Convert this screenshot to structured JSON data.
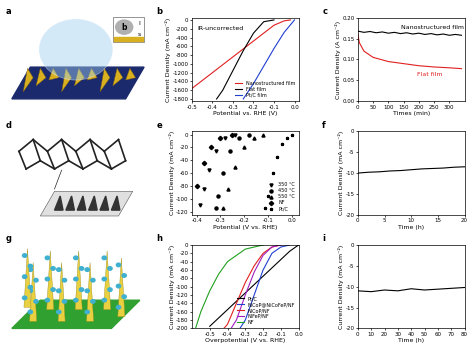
{
  "chart_data": [
    {
      "type": "line",
      "panel_label": "b",
      "x_label": "Potential vs. RHE (V)",
      "y_label": "Current Density (mA cm⁻²)",
      "xlim": [
        -0.5,
        0.02
      ],
      "xticks": [
        -0.5,
        -0.4,
        -0.3,
        -0.2,
        -0.1,
        0.0
      ],
      "ylim": [
        -1850,
        50
      ],
      "yticks": [
        0,
        -200,
        -400,
        -600,
        -800,
        -1000,
        -1200,
        -1400,
        -1600,
        -1800
      ],
      "legend": "lower right",
      "annotations": [
        {
          "text": "IR-uncorrected",
          "color": "#000000"
        }
      ],
      "series": [
        {
          "name": "Nanostructured film",
          "color": "#e02020",
          "line_style": "solid",
          "x": [
            -0.02,
            -0.05,
            -0.1,
            -0.15,
            -0.2,
            -0.25,
            -0.3,
            -0.35,
            -0.4,
            -0.45,
            -0.5
          ],
          "values": [
            0,
            -20,
            -120,
            -300,
            -480,
            -660,
            -840,
            -1020,
            -1200,
            -1380,
            -1560
          ]
        },
        {
          "name": "Flat film",
          "color": "#000000",
          "line_style": "solid",
          "x": [
            -0.1,
            -0.15,
            -0.2,
            -0.25,
            -0.3,
            -0.35,
            -0.38
          ],
          "values": [
            0,
            -40,
            -300,
            -700,
            -1150,
            -1600,
            -1800
          ]
        },
        {
          "name": "Pt/C film",
          "color": "#2040d0",
          "line_style": "solid",
          "x": [
            0.0,
            -0.05,
            -0.1,
            -0.15,
            -0.2,
            -0.25
          ],
          "values": [
            0,
            -280,
            -650,
            -1050,
            -1450,
            -1800
          ]
        }
      ]
    },
    {
      "type": "line",
      "panel_label": "c",
      "x_label": "Times (min)",
      "y_label": "Current Density (A cm⁻²)",
      "xlim": [
        0,
        350
      ],
      "xticks": [
        0,
        50,
        100,
        150,
        200,
        250,
        300
      ],
      "ylim": [
        0.0,
        0.2
      ],
      "yticks": [
        {
          "value": 0.0,
          "label": "0.00"
        },
        0.05,
        {
          "value": 0.1,
          "label": "0.10"
        },
        0.15,
        {
          "value": 0.2,
          "label": "0.20"
        }
      ],
      "annotations": [
        {
          "text": "Nanostructured film",
          "color": "#000000"
        },
        {
          "text": "Flat film",
          "color": "#e02020"
        }
      ],
      "series": [
        {
          "color": "#000000",
          "line_style": "solid",
          "x": [
            0,
            20,
            40,
            60,
            80,
            100,
            120,
            140,
            160,
            180,
            200,
            220,
            240,
            260,
            280,
            300,
            320,
            340
          ],
          "values": [
            0.168,
            0.165,
            0.167,
            0.164,
            0.166,
            0.163,
            0.165,
            0.162,
            0.164,
            0.161,
            0.163,
            0.16,
            0.162,
            0.159,
            0.161,
            0.158,
            0.16,
            0.158
          ]
        },
        {
          "color": "#e02020",
          "line_style": "solid",
          "x": [
            0,
            5,
            20,
            50,
            100,
            150,
            200,
            250,
            300,
            340
          ],
          "values": [
            0.16,
            0.14,
            0.12,
            0.105,
            0.095,
            0.09,
            0.085,
            0.082,
            0.08,
            0.078
          ]
        }
      ]
    },
    {
      "type": "line",
      "panel_label": "e",
      "x_label": "Potential (V vs. RHE)",
      "y_label": "Current Density (mA cm⁻²)",
      "xlim": [
        -0.42,
        0.03
      ],
      "xticks": [
        -0.4,
        -0.3,
        -0.2,
        -0.1,
        0.0
      ],
      "ylim": [
        -125,
        5
      ],
      "yticks": [
        0,
        -20,
        -40,
        -60,
        -80,
        -100,
        -120
      ],
      "legend": "lower right",
      "series": [
        {
          "name": "350 °C",
          "color": "#000000",
          "marker": "triangle_down",
          "line_style": "none",
          "x": [
            -0.24,
            -0.28,
            -0.32,
            -0.35,
            -0.37,
            -0.385
          ],
          "values": [
            0,
            -5,
            -25,
            -55,
            -85,
            -110
          ]
        },
        {
          "name": "450 °C",
          "color": "#000000",
          "marker": "circle",
          "line_style": "none",
          "x": [
            -0.18,
            -0.22,
            -0.26,
            -0.29,
            -0.31,
            -0.32
          ],
          "values": [
            0,
            -5,
            -25,
            -60,
            -95,
            -115
          ]
        },
        {
          "name": "550 °C",
          "color": "#000000",
          "marker": "triangle_up",
          "line_style": "none",
          "x": [
            -0.12,
            -0.16,
            -0.2,
            -0.24,
            -0.27,
            -0.29
          ],
          "values": [
            0,
            -5,
            -20,
            -50,
            -85,
            -115
          ]
        },
        {
          "name": "NF",
          "color": "#000000",
          "marker": "diamond",
          "line_style": "none",
          "x": [
            -0.25,
            -0.3,
            -0.34,
            -0.37,
            -0.4
          ],
          "values": [
            0,
            -5,
            -20,
            -45,
            -80
          ]
        },
        {
          "name": "Pt/C",
          "color": "#000000",
          "marker": "star",
          "line_style": "none",
          "x": [
            0.0,
            -0.02,
            -0.04,
            -0.06,
            -0.08,
            -0.1,
            -0.11
          ],
          "values": [
            0,
            -5,
            -15,
            -35,
            -60,
            -95,
            -115
          ]
        }
      ]
    },
    {
      "type": "line",
      "panel_label": "f",
      "x_label": "Time (h)",
      "y_label": "Current Density (mA cm⁻²)",
      "xlim": [
        0,
        20
      ],
      "xticks": [
        0,
        5,
        10,
        15,
        20
      ],
      "ylim": [
        -20,
        0
      ],
      "yticks": [
        0,
        -5,
        -10,
        -15,
        -20
      ],
      "series": [
        {
          "color": "#000000",
          "line_style": "solid",
          "x": [
            0,
            2,
            4,
            6,
            8,
            10,
            12,
            14,
            16,
            18,
            20
          ],
          "values": [
            -10,
            -9.8,
            -9.7,
            -9.5,
            -9.4,
            -9.2,
            -9.0,
            -8.9,
            -8.8,
            -8.6,
            -8.5
          ]
        }
      ]
    },
    {
      "type": "line",
      "panel_label": "h",
      "x_label": "Overpotential (V vs. RHE)",
      "y_label": "Current Density (mA cm⁻²)",
      "xlim": [
        -0.6,
        0.0
      ],
      "xticks": [
        -0.5,
        -0.4,
        -0.3,
        -0.2,
        -0.1,
        0.0
      ],
      "ylim": [
        -200,
        0
      ],
      "yticks": [
        0,
        -20,
        -40,
        -60,
        -80,
        -100,
        -120,
        -140,
        -160,
        -180,
        -200
      ],
      "legend": "lower right",
      "series": [
        {
          "name": "Pt/C",
          "color": "#000000",
          "line_style": "solid",
          "x": [
            0.0,
            -0.05,
            -0.1,
            -0.15,
            -0.2,
            -0.25,
            -0.3,
            -0.35,
            -0.4,
            -0.45,
            -0.5
          ],
          "values": [
            0,
            -15,
            -35,
            -55,
            -75,
            -95,
            -115,
            -135,
            -155,
            -175,
            -195
          ]
        },
        {
          "name": "NiCoP@NiCoFeP/NF",
          "color": "#2040d0",
          "line_style": "solid",
          "x": [
            -0.05,
            -0.1,
            -0.15,
            -0.2,
            -0.25,
            -0.3,
            -0.33
          ],
          "values": [
            0,
            -5,
            -20,
            -60,
            -120,
            -180,
            -200
          ]
        },
        {
          "name": "NiCoP/NF",
          "color": "#e02020",
          "line_style": "solid",
          "x": [
            -0.1,
            -0.15,
            -0.2,
            -0.25,
            -0.3,
            -0.35,
            -0.4,
            -0.42
          ],
          "values": [
            0,
            -5,
            -20,
            -50,
            -90,
            -140,
            -190,
            -200
          ]
        },
        {
          "name": "NiFeP/NF",
          "color": "#a020c0",
          "line_style": "solid",
          "x": [
            -0.1,
            -0.15,
            -0.2,
            -0.25,
            -0.3,
            -0.35,
            -0.38
          ],
          "values": [
            0,
            -5,
            -25,
            -65,
            -120,
            -180,
            -200
          ]
        },
        {
          "name": "NF",
          "color": "#20a020",
          "line_style": "solid",
          "x": [
            -0.2,
            -0.3,
            -0.4,
            -0.45,
            -0.5,
            -0.55,
            -0.58
          ],
          "values": [
            0,
            -10,
            -40,
            -70,
            -110,
            -160,
            -200
          ]
        }
      ]
    },
    {
      "type": "line",
      "panel_label": "i",
      "x_label": "Time (h)",
      "y_label": "Current Density (mA cm⁻²)",
      "xlim": [
        0,
        80
      ],
      "xticks": [
        0,
        10,
        20,
        30,
        40,
        50,
        60,
        70,
        80
      ],
      "ylim": [
        -20,
        0
      ],
      "yticks": [
        0,
        -5,
        -10,
        -15,
        -20
      ],
      "series": [
        {
          "color": "#000000",
          "line_style": "solid",
          "x": [
            0,
            10,
            20,
            30,
            40,
            50,
            60,
            70,
            80
          ],
          "values": [
            -11,
            -11.2,
            -10.8,
            -11,
            -10.5,
            -10.8,
            -10.6,
            -10.4,
            -10.2
          ]
        }
      ]
    }
  ],
  "schematics": [
    {
      "panel_label": "a",
      "inset_labels": [
        "b",
        "l",
        "s"
      ]
    },
    {
      "panel_label": "d"
    },
    {
      "panel_label": "g"
    }
  ]
}
